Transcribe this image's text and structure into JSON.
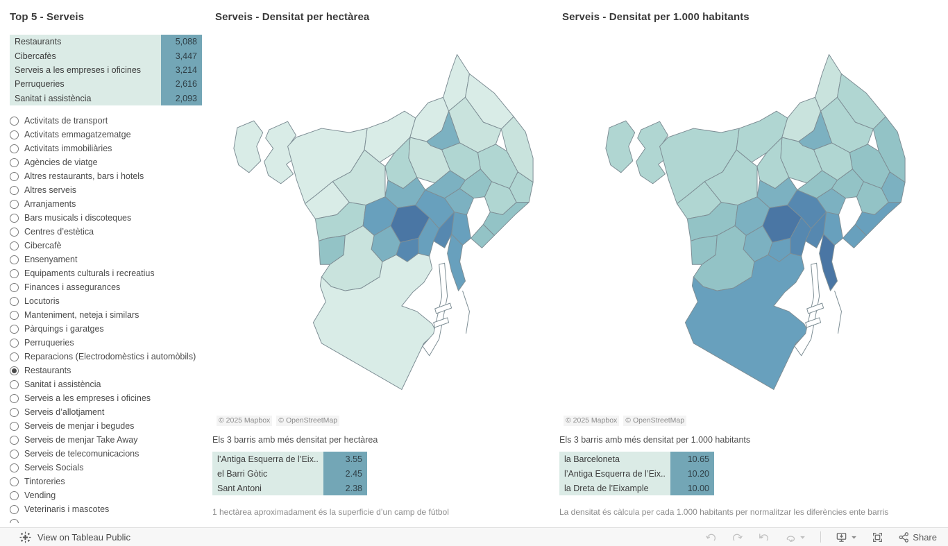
{
  "left_panel": {
    "title": "Top 5 - Serveis",
    "top5_rows": [
      {
        "label": "Restaurants",
        "value": "5,088"
      },
      {
        "label": "Cibercafès",
        "value": "3,447"
      },
      {
        "label": "Serveis a les empreses i oficines",
        "value": "3,214"
      },
      {
        "label": "Perruqueries",
        "value": "2,616"
      },
      {
        "label": "Sanitat i assistència",
        "value": "2,093"
      }
    ],
    "categories": {
      "selected": "Restaurants",
      "items": [
        "Activitats de transport",
        "Activitats emmagatzematge",
        "Activitats immobiliàries",
        "Agències de viatge",
        "Altres restaurants, bars i hotels",
        "Altres serveis",
        "Arranjaments",
        "Bars musicals i discoteques",
        "Centres d’estètica",
        "Cibercafè",
        "Ensenyament",
        "Equipaments culturals i recreatius",
        "Finances i assegurances",
        "Locutoris",
        "Manteniment, neteja i similars",
        "Pàrquings i garatges",
        "Perruqueries",
        "Reparacions (Electrodomèstics i automòbils)",
        "Restaurants",
        "Sanitat i assistència",
        "Serveis a les empreses i oficines",
        "Serveis d’allotjament",
        "Serveis de menjar i begudes",
        "Serveis de menjar Take Away",
        "Serveis de telecomunicacions",
        "Serveis Socials",
        "Tintoreries",
        "Vending",
        "Veterinaris i mascotes"
      ]
    }
  },
  "map_hectarea": {
    "title": "Serveis - Densitat per hectàrea",
    "attribution": [
      "© 2025 Mapbox",
      "© OpenStreetMap"
    ],
    "subtitle": "Els 3 barris amb més densitat per hectàrea",
    "table": [
      {
        "label": "l’Antiga Esquerra de l’Eix..",
        "value": "3.55"
      },
      {
        "label": "el Barri Gòtic",
        "value": "2.45"
      },
      {
        "label": "Sant Antoni",
        "value": "2.38"
      }
    ],
    "footnote": "1 hectàrea aproximadament és la superficie d’un camp de fútbol",
    "region_fill_idx": [
      0,
      0,
      0,
      0,
      0,
      0,
      0,
      1,
      1,
      4,
      2,
      2,
      1,
      2,
      4,
      1,
      0,
      2,
      3,
      5,
      7,
      5,
      4,
      4,
      3,
      2,
      2,
      3,
      3,
      5,
      6,
      5,
      6,
      4,
      5,
      1,
      0
    ]
  },
  "map_habitants": {
    "title": "Serveis - Densitat per 1.000 habitants",
    "attribution": [
      "© 2025 Mapbox",
      "© OpenStreetMap"
    ],
    "subtitle": "Els 3 barris amb més densitat per 1.000 habitants",
    "table": [
      {
        "label": "la Barceloneta",
        "value": "10.65"
      },
      {
        "label": "l’Antiga Esquerra de l’Eix..",
        "value": "10.20"
      },
      {
        "label": "la Dreta de l’Eixample",
        "value": "10.00"
      }
    ],
    "footnote": "La densitat és càlcula per cada 1.000 habitants per normalitzar les diferències ente barris",
    "region_fill_idx": [
      2,
      2,
      2,
      2,
      1,
      1,
      2,
      3,
      2,
      4,
      3,
      2,
      2,
      2,
      4,
      2,
      2,
      3,
      3,
      4,
      7,
      6,
      4,
      3,
      3,
      3,
      4,
      5,
      5,
      5,
      6,
      6,
      5,
      4,
      7,
      3,
      5
    ]
  },
  "palette": [
    "#d9ece7",
    "#c9e3dd",
    "#b0d6d2",
    "#93c3c6",
    "#7cb1c1",
    "#68a0bd",
    "#5688b0",
    "#4a76a4"
  ],
  "colors": {
    "table_label_bg": "#dbebe6",
    "table_value_bg": "#73a6b6",
    "map_stroke": "#7e8e95",
    "toolbar_bg": "#f7f7f7"
  },
  "toolbar": {
    "view_on_label": "View on Tableau Public",
    "share_label": "Share"
  },
  "chart_data": [
    {
      "type": "table",
      "title": "Top 5 - Serveis",
      "categories": [
        "Restaurants",
        "Cibercafès",
        "Serveis a les empreses i oficines",
        "Perruqueries",
        "Sanitat i assistència"
      ],
      "values": [
        5088,
        3447,
        3214,
        2616,
        2093
      ]
    },
    {
      "type": "heatmap",
      "subtype": "choropleth-map",
      "title": "Serveis - Densitat per hectàrea",
      "top3_categories": [
        "l’Antiga Esquerra de l’Eix..",
        "el Barri Gòtic",
        "Sant Antoni"
      ],
      "top3_values": [
        3.55,
        2.45,
        2.38
      ],
      "note": "1 hectàrea aproximadament és la superficie d’un camp de fútbol"
    },
    {
      "type": "heatmap",
      "subtype": "choropleth-map",
      "title": "Serveis - Densitat per 1.000 habitants",
      "top3_categories": [
        "la Barceloneta",
        "l’Antiga Esquerra de l’Eix..",
        "la Dreta de l’Eixample"
      ],
      "top3_values": [
        10.65,
        10.2,
        10.0
      ],
      "note": "La densitat és càlcula per cada 1.000 habitants per normalitzar les diferències ente barris"
    }
  ]
}
